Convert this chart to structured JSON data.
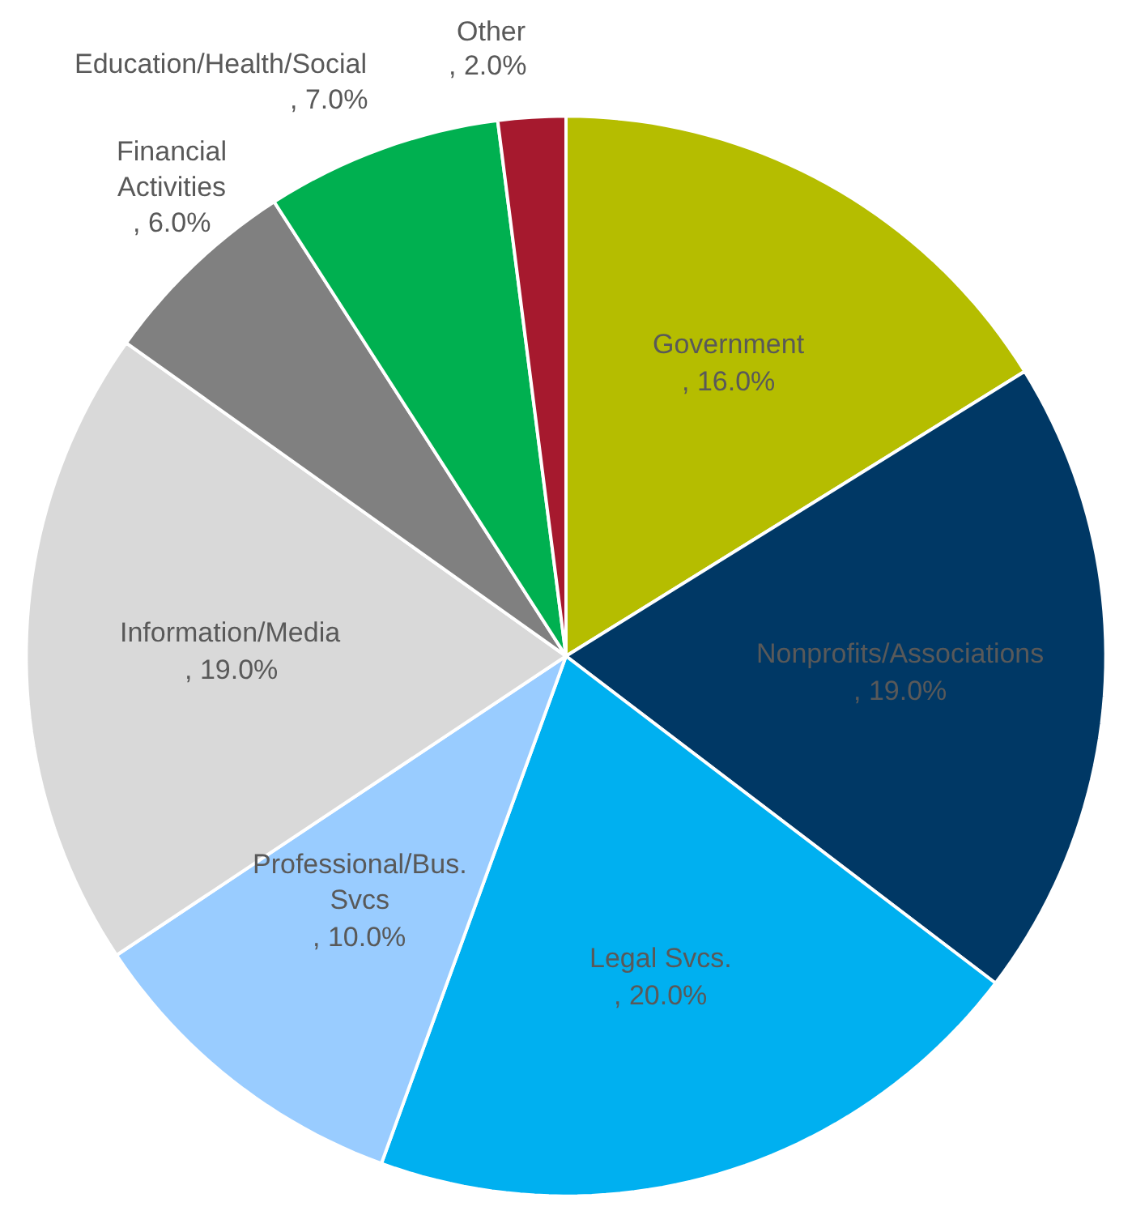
{
  "chart_data": {
    "type": "pie",
    "categories": [
      "Government",
      "Nonprofits/Associations",
      "Legal Svcs.",
      "Professional/Bus. Svcs",
      "Information/Media",
      "Financial Activities",
      "Education/Health/Social",
      "Other"
    ],
    "values": [
      16,
      19,
      20,
      10,
      19,
      6,
      7,
      2
    ],
    "colors": [
      "#b5bd00",
      "#003865",
      "#00b0f0",
      "#99ccff",
      "#d9d9d9",
      "#808080",
      "#00b050",
      "#a6192e"
    ],
    "value_labels": [
      ", 16.0%",
      ", 19.0%",
      ", 20.0%",
      ", 10.0%",
      ", 19.0%",
      ", 6.0%",
      ", 7.0%",
      ", 2.0%"
    ],
    "legend": false
  }
}
